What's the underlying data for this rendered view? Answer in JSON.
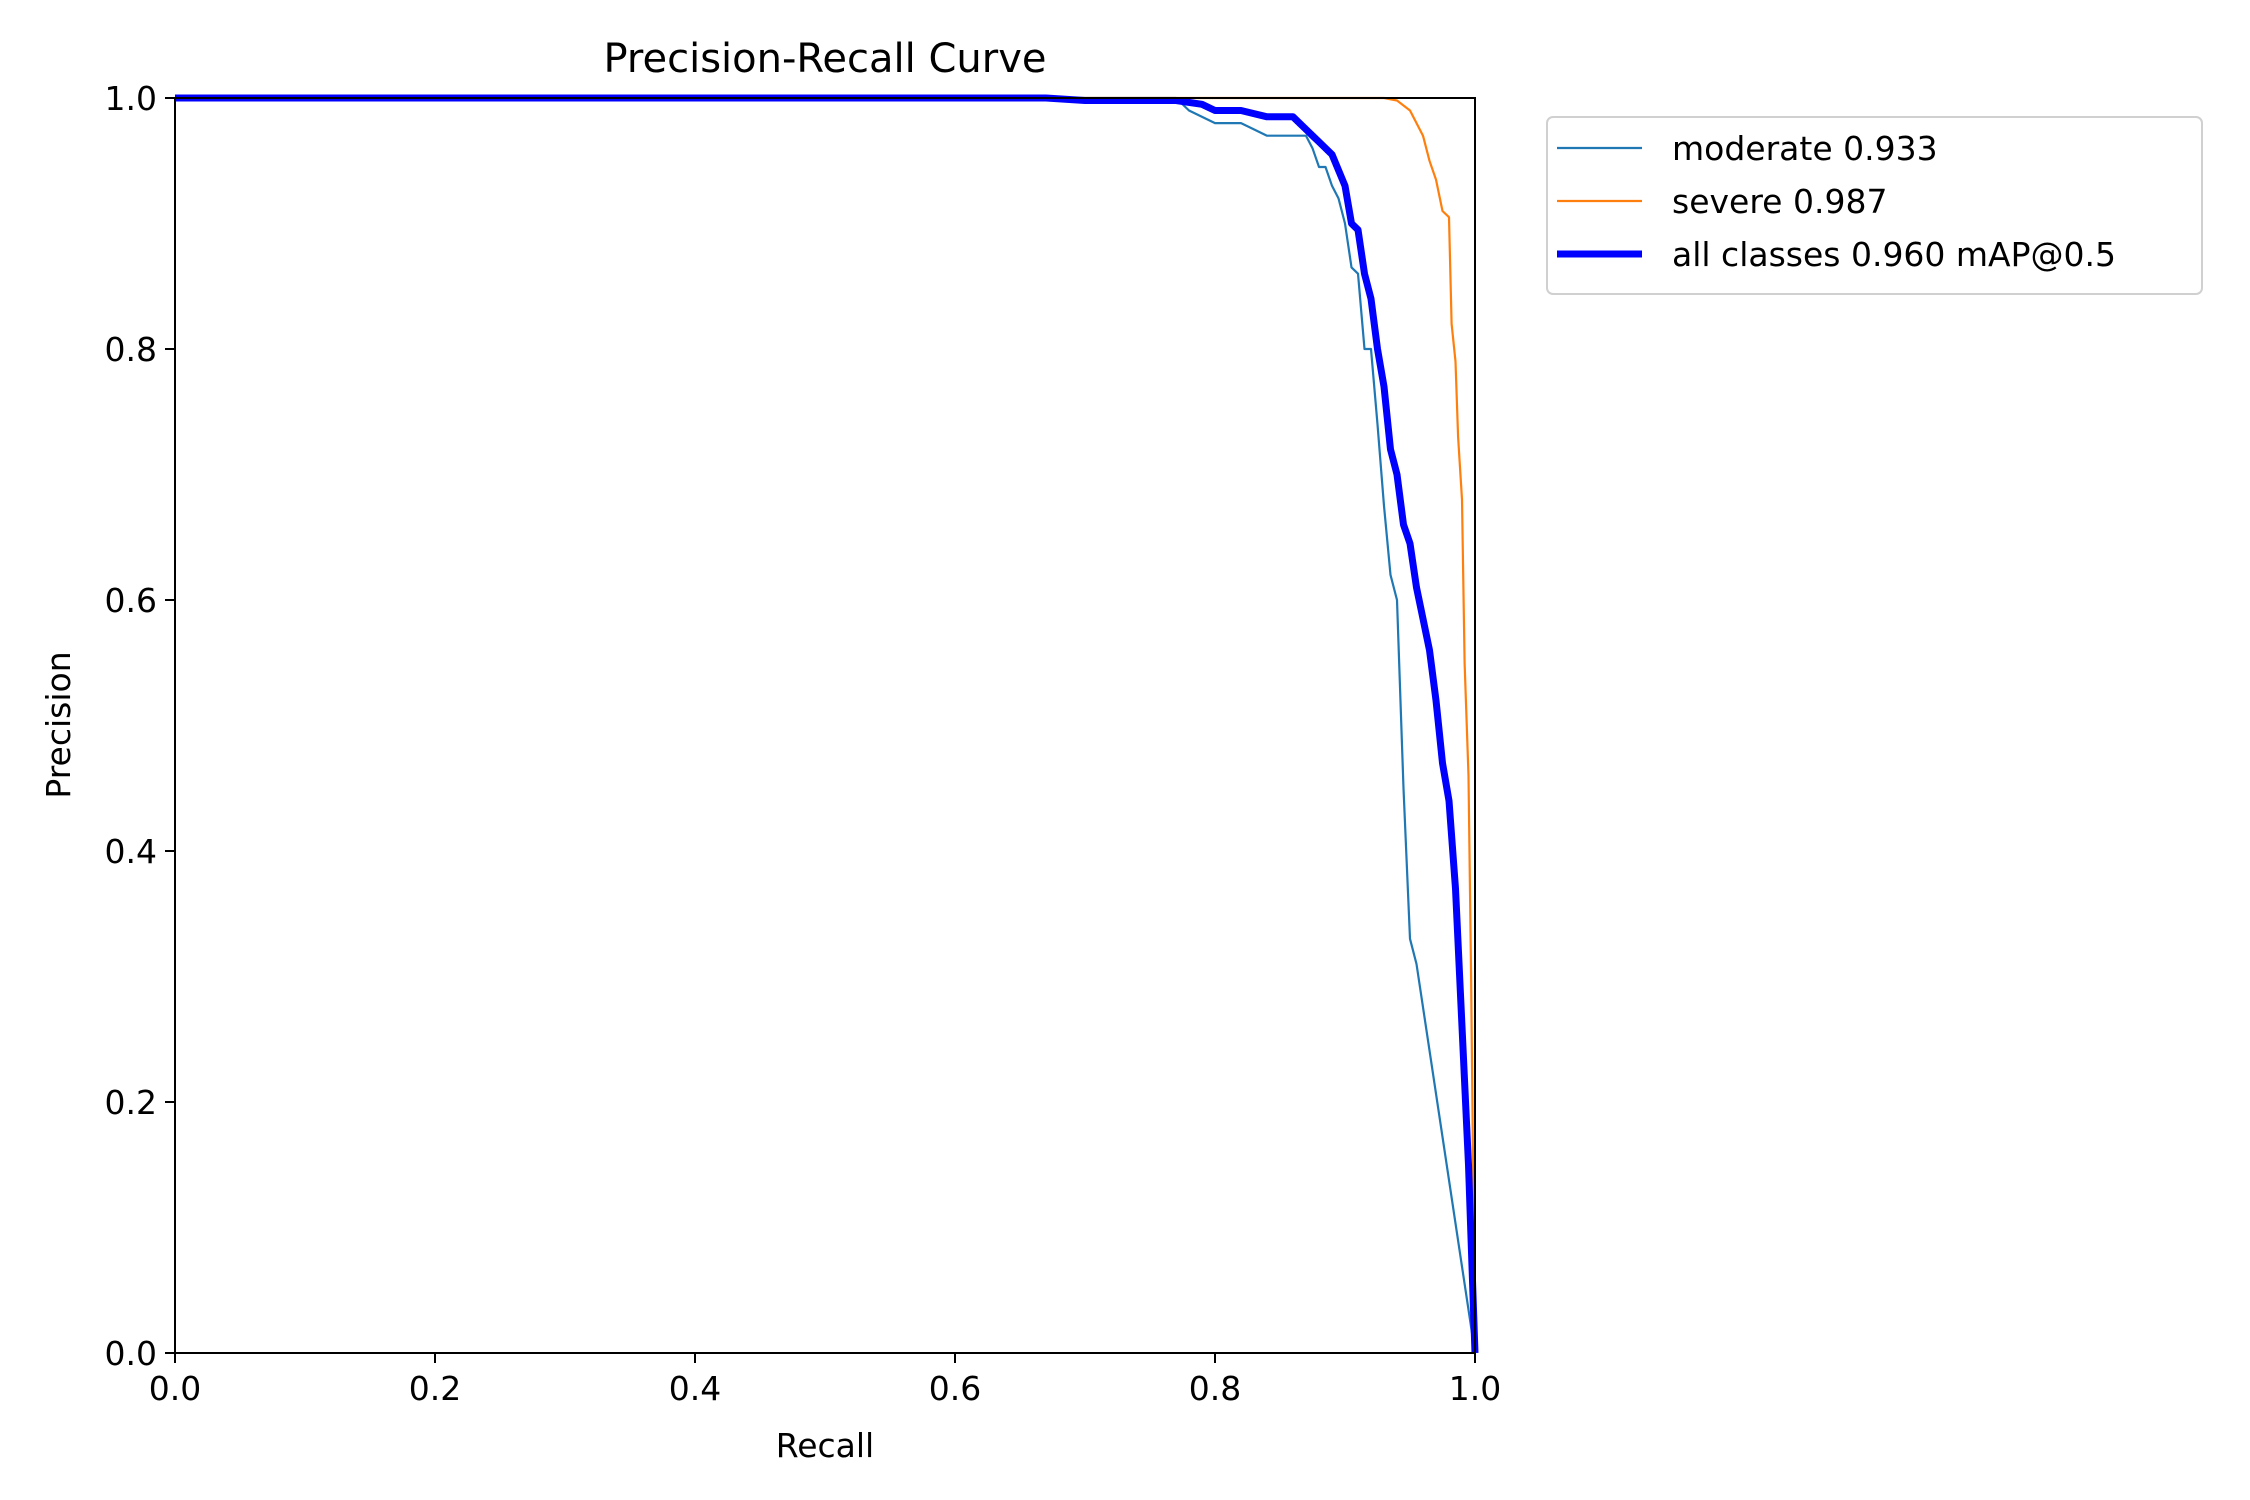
{
  "chart_data": {
    "type": "line",
    "title": "Precision-Recall Curve",
    "xlabel": "Recall",
    "ylabel": "Precision",
    "xlim": [
      0,
      1
    ],
    "ylim": [
      0,
      1
    ],
    "xticks": [
      {
        "value": 0.0,
        "label": "0.0"
      },
      {
        "value": 0.2,
        "label": "0.2"
      },
      {
        "value": 0.4,
        "label": "0.4"
      },
      {
        "value": 0.6,
        "label": "0.6"
      },
      {
        "value": 0.8,
        "label": "0.8"
      },
      {
        "value": 1.0,
        "label": "1.0"
      }
    ],
    "yticks": [
      {
        "value": 0.0,
        "label": "0.0"
      },
      {
        "value": 0.2,
        "label": "0.2"
      },
      {
        "value": 0.4,
        "label": "0.4"
      },
      {
        "value": 0.6,
        "label": "0.6"
      },
      {
        "value": 0.8,
        "label": "0.8"
      },
      {
        "value": 1.0,
        "label": "1.0"
      }
    ],
    "grid": false,
    "legend_position": "outside-right-top",
    "series": [
      {
        "name": "moderate 0.933",
        "color": "#1f77b4",
        "x": [
          0.0,
          0.77,
          0.78,
          0.8,
          0.82,
          0.84,
          0.86,
          0.87,
          0.875,
          0.88,
          0.885,
          0.89,
          0.895,
          0.9,
          0.905,
          0.91,
          0.915,
          0.92,
          0.925,
          0.93,
          0.935,
          0.94,
          0.945,
          0.95,
          0.955,
          1.0
        ],
        "y": [
          1.0,
          1.0,
          0.99,
          0.98,
          0.98,
          0.97,
          0.97,
          0.97,
          0.96,
          0.945,
          0.945,
          0.93,
          0.92,
          0.9,
          0.865,
          0.86,
          0.8,
          0.8,
          0.74,
          0.675,
          0.62,
          0.6,
          0.45,
          0.33,
          0.31,
          0.0
        ]
      },
      {
        "name": "severe 0.987",
        "color": "#ff7f0e",
        "x": [
          0.0,
          0.9,
          0.92,
          0.93,
          0.94,
          0.95,
          0.96,
          0.965,
          0.97,
          0.975,
          0.98,
          0.982,
          0.985,
          0.987,
          0.99,
          0.992,
          0.995,
          0.997,
          1.0
        ],
        "y": [
          1.0,
          1.0,
          1.0,
          1.0,
          0.998,
          0.99,
          0.97,
          0.95,
          0.935,
          0.91,
          0.905,
          0.82,
          0.79,
          0.73,
          0.68,
          0.55,
          0.46,
          0.3,
          0.0
        ]
      },
      {
        "name": "all classes 0.960 mAP@0.5",
        "color": "#0000ff",
        "x": [
          0.0,
          0.67,
          0.7,
          0.75,
          0.77,
          0.79,
          0.8,
          0.82,
          0.84,
          0.86,
          0.87,
          0.875,
          0.88,
          0.89,
          0.9,
          0.905,
          0.91,
          0.915,
          0.92,
          0.925,
          0.93,
          0.935,
          0.94,
          0.945,
          0.95,
          0.955,
          0.96,
          0.965,
          0.97,
          0.975,
          0.98,
          0.985,
          0.99,
          0.995,
          1.0
        ],
        "y": [
          1.0,
          1.0,
          0.998,
          0.998,
          0.998,
          0.995,
          0.99,
          0.99,
          0.985,
          0.985,
          0.975,
          0.97,
          0.965,
          0.955,
          0.93,
          0.9,
          0.895,
          0.86,
          0.84,
          0.8,
          0.77,
          0.72,
          0.7,
          0.66,
          0.645,
          0.61,
          0.585,
          0.56,
          0.52,
          0.47,
          0.44,
          0.37,
          0.26,
          0.15,
          0.0
        ]
      }
    ]
  }
}
